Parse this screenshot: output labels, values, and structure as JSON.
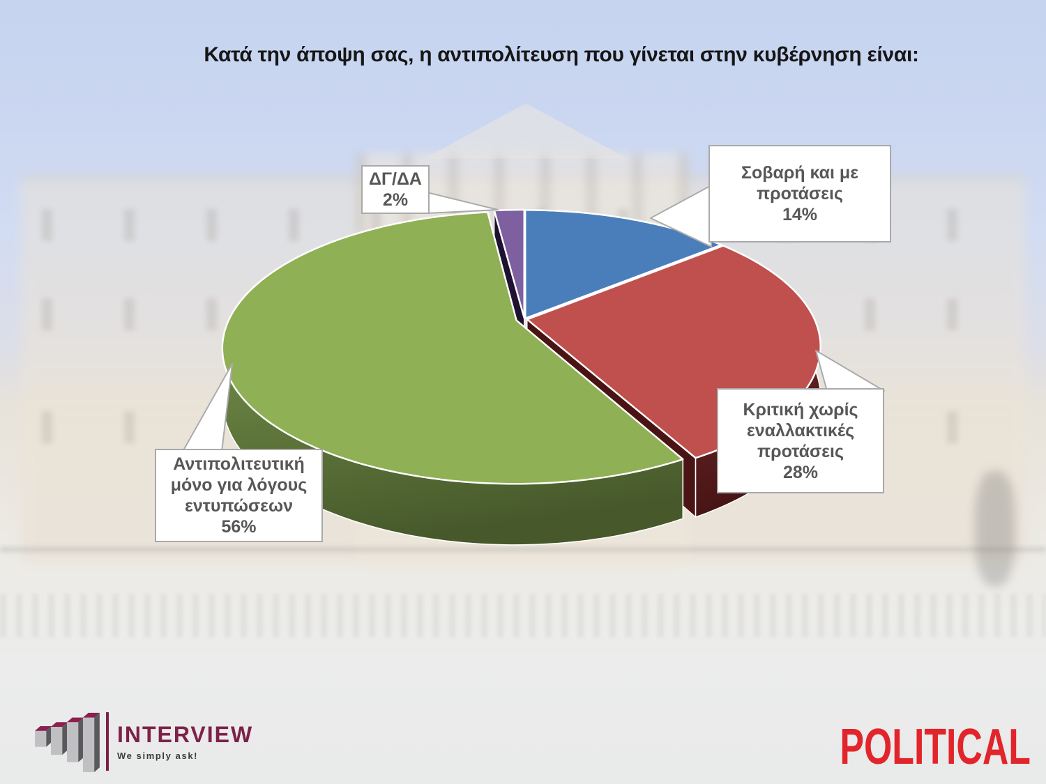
{
  "slide": {
    "title": "Κατά την άποψη σας, η αντιπολίτευση που γίνεται στην κυβέρνηση είναι:"
  },
  "chart_data": {
    "type": "pie",
    "style": "3d-exploded",
    "title": "Κατά την άποψη σας, η αντιπολίτευση που γίνεται στην κυβέρνηση είναι:",
    "unit": "percent",
    "start_angle_deg": 0,
    "direction": "clockwise",
    "legend": "none",
    "labels_style": "callout-boxes",
    "categories": [
      "Σοβαρή και με προτάσεις",
      "Κριτική χωρίς εναλλακτικές προτάσεις",
      "Αντιπολιτευτική μόνο για λόγους εντυπώσεων",
      "ΔΓ/ΔΑ"
    ],
    "values": [
      14,
      28,
      56,
      2
    ],
    "slices": [
      {
        "label": "Σοβαρή και με προτάσεις",
        "value": 14,
        "pct_label": "14%",
        "callout_label": "Σοβαρή και με\nπροτάσεις",
        "color": "#4a7ebb",
        "rim_light": "#3d6aa0",
        "rim_dark": "#2c4a74",
        "wall_color": "#2c4a74"
      },
      {
        "label": "Κριτική χωρίς εναλλακτικές προτάσεις",
        "value": 28,
        "pct_label": "28%",
        "callout_label": "Κριτική χωρίς\nεναλλακτικές\nπροτάσεις",
        "color": "#c0504d",
        "rim_light": "#7b2f2d",
        "rim_dark": "#431213",
        "wall_color": "#4a1314"
      },
      {
        "label": "Αντιπολιτευτική μόνο για λόγους εντυπώσεων",
        "value": 56,
        "pct_label": "56%",
        "callout_label": "Αντιπολιτευτική\nμόνο για λόγους\nεντυπώσεων",
        "color": "#8fb054",
        "rim_light": "#74904a",
        "rim_dark": "#47592b",
        "wall_color": "#4c602c"
      },
      {
        "label": "ΔΓ/ΔΑ",
        "value": 2,
        "pct_label": "2%",
        "callout_label": "ΔΓ/ΔΑ",
        "color": "#7e60a0",
        "rim_light": "#544070",
        "rim_dark": "#2a1a42",
        "wall_color": "#1f1130"
      }
    ]
  },
  "footer": {
    "interview_logo": {
      "name": "INTERVIEW",
      "tagline": "We simply ask!",
      "brand_color": "#7c2148"
    },
    "political_logo": {
      "name": "POLITICAL",
      "color": "#e2242b"
    }
  }
}
